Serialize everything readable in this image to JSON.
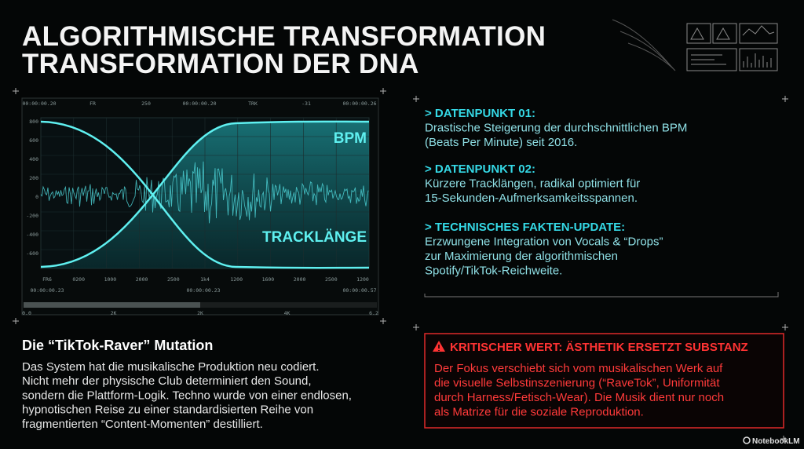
{
  "title": [
    "ALGORITHMISCHE TRANSFORMATION",
    "TRANSFORMATION DER DNA"
  ],
  "visual": {
    "header_labels": [
      "00:00:00.20",
      "FR",
      "250",
      "00:00:00.20",
      "TRK",
      "-31",
      "00:00:00.26"
    ],
    "y_labels": [
      "800",
      "600",
      "400",
      "200",
      "0",
      "-200",
      "-400",
      "-600"
    ],
    "x_labels": [
      "FR6",
      "0200",
      "1000",
      "2000",
      "2500",
      "1k4",
      "1200",
      "1600",
      "2000",
      "2500",
      "1200"
    ],
    "footer_labels": [
      "00:00:00.23",
      "00:00:00.23",
      "00:00:00.57"
    ],
    "scale_labels": [
      "0.0",
      "2K",
      "2K",
      "4K",
      "6.2"
    ],
    "curve_labels": [
      "BPM",
      "TRACKLÄNGE"
    ]
  },
  "datapoints": [
    {
      "heading": "> DATENPUNKT 01:",
      "lines": [
        "Drastische Steigerung der durchschnittlichen BPM",
        "(Beats Per Minute) seit 2016."
      ]
    },
    {
      "heading": "> DATENPUNKT 02:",
      "lines": [
        "Kürzere Tracklängen, radikal optimiert für",
        "15-Sekunden-Aufmerksamkeitsspannen."
      ]
    },
    {
      "heading": "> TECHNISCHES FAKTEN-UPDATE:",
      "lines": [
        "Erzwungene Integration von Vocals & “Drops”",
        "zur Maximierung der algorithmischen",
        "Spotify/TikTok-Reichweite."
      ]
    }
  ],
  "mutation": {
    "heading": "Die “TikTok-Raver” Mutation",
    "lines": [
      "Das System hat die musikalische Produktion neu codiert.",
      "Nicht mehr der physische Club determiniert den Sound,",
      "sondern die Plattform-Logik. Techno wurde von einer endlosen,",
      "hypnotischen Reise zu einer standardisierten Reihe von",
      "fragmentierten “Content-Momenten” destilliert."
    ]
  },
  "warning": {
    "heading": "KRITISCHER WERT: ÄSTHETIK ERSETZT SUBSTANZ",
    "lines": [
      "Der Fokus verschiebt sich vom musikalischen Werk auf",
      "die visuelle Selbstinszenierung (“RaveTok”, Uniformität",
      "durch Harness/Fetisch-Wear). Die Musik dient nur noch",
      "als Matrize für die soziale Reproduktion."
    ]
  },
  "brand": "NotebookLM"
}
